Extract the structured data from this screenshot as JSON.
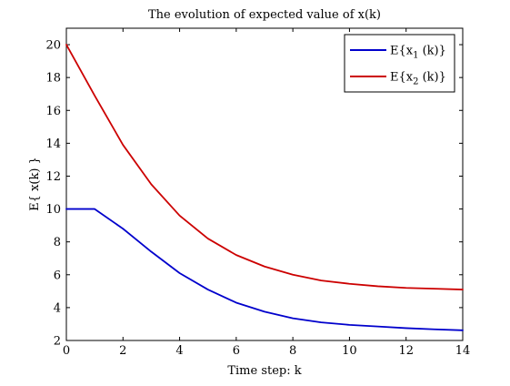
{
  "chart_data": {
    "type": "line",
    "title": "The evolution of expected value of x(k)",
    "xlabel": "Time step: k",
    "ylabel": "E{ x(k) }",
    "xlim": [
      0,
      14
    ],
    "ylim": [
      2,
      21
    ],
    "xticks": [
      0,
      2,
      4,
      6,
      8,
      10,
      12,
      14
    ],
    "yticks": [
      2,
      4,
      6,
      8,
      10,
      12,
      14,
      16,
      18,
      20
    ],
    "grid": false,
    "legend_position": "top-right",
    "x": [
      0,
      1,
      2,
      3,
      4,
      5,
      6,
      7,
      8,
      9,
      10,
      11,
      12,
      13,
      14
    ],
    "series": [
      {
        "name": "E{x1 (k)}",
        "legend": {
          "base": "E{x",
          "sub": "1",
          "rest": " (k)}"
        },
        "color": "#0000cc",
        "values": [
          10.0,
          10.0,
          8.8,
          7.4,
          6.1,
          5.1,
          4.3,
          3.75,
          3.35,
          3.1,
          2.95,
          2.85,
          2.75,
          2.68,
          2.62
        ]
      },
      {
        "name": "E{x2 (k)}",
        "legend": {
          "base": "E{x",
          "sub": "2",
          "rest": " (k)}"
        },
        "color": "#cc0000",
        "values": [
          20.0,
          16.9,
          13.9,
          11.5,
          9.6,
          8.2,
          7.2,
          6.5,
          6.0,
          5.65,
          5.45,
          5.3,
          5.2,
          5.15,
          5.1
        ]
      }
    ]
  }
}
